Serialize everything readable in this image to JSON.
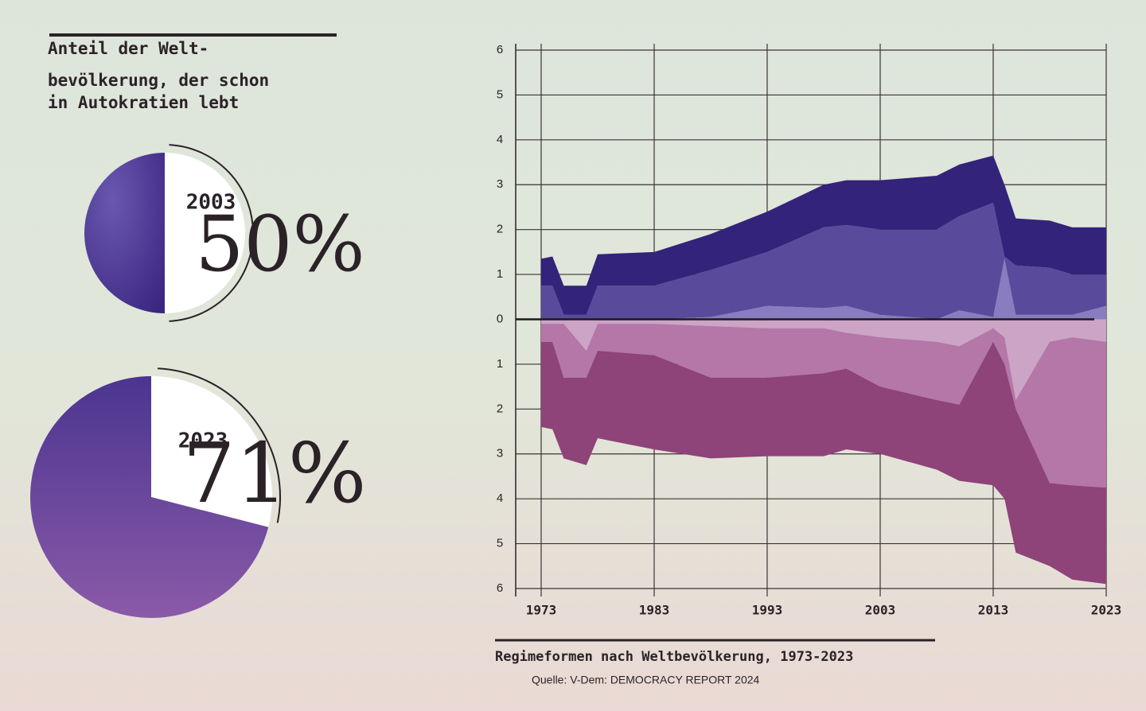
{
  "heading": [
    "Anteil der Welt-",
    "bevölkerung, der schon",
    "in Autokratien lebt"
  ],
  "chart_data": [
    {
      "type": "pie",
      "label": "2003",
      "values": [
        50
      ],
      "value_labels": [
        "50%"
      ],
      "color": "#3b2b86"
    },
    {
      "type": "pie",
      "label": "2023",
      "values": [
        71
      ],
      "value_labels": [
        "71%"
      ],
      "color": "#4d3a8e"
    },
    {
      "type": "area",
      "title": "Regimeformen nach Weltbevölkerung, 1973-2023",
      "source": "Quelle: V-Dem: DEMOCRACY REPORT 2024",
      "x": [
        1973,
        1974,
        1975,
        1977,
        1978,
        1983,
        1988,
        1993,
        1998,
        2000,
        2003,
        2008,
        2010,
        2013,
        2014,
        2015,
        2018,
        2020,
        2023
      ],
      "xlim": [
        1973,
        2023
      ],
      "xticks": [
        1973,
        1983,
        1993,
        2003,
        2013,
        2023
      ],
      "ylim": [
        -6,
        6
      ],
      "yticks": [
        {
          "value": -6,
          "label": "6"
        },
        {
          "value": -5,
          "label": "5"
        },
        {
          "value": -4,
          "label": "4"
        },
        {
          "value": -3,
          "label": "3"
        },
        {
          "value": -2,
          "label": "2"
        },
        {
          "value": -1,
          "label": "1"
        },
        0,
        1,
        2,
        3,
        4,
        5,
        6
      ],
      "grid": true,
      "series": [
        {
          "color": "#8a7cc0",
          "values": [
            0,
            0,
            0,
            0,
            0,
            0,
            0.05,
            0.3,
            0.25,
            0.3,
            0.1,
            0,
            0.2,
            0.05,
            1.35,
            0.1,
            0.1,
            0.1,
            0.3
          ]
        },
        {
          "color": "#5a4a9c",
          "values": [
            0.75,
            0.75,
            0.1,
            0.1,
            0.75,
            0.75,
            1.05,
            1.2,
            1.8,
            1.8,
            1.9,
            2.0,
            2.1,
            2.55,
            0.05,
            1.1,
            1.05,
            0.9,
            0.7
          ]
        },
        {
          "color": "#33237a",
          "values": [
            0.6,
            0.65,
            0.65,
            0.65,
            0.7,
            0.75,
            0.8,
            0.9,
            0.95,
            1.0,
            1.1,
            1.2,
            1.15,
            1.05,
            1.6,
            1.05,
            1.05,
            1.05,
            1.05
          ]
        },
        {
          "color": "#cba4c6",
          "values": [
            -0.1,
            -0.1,
            -0.1,
            -0.7,
            -0.1,
            -0.1,
            -0.15,
            -0.2,
            -0.2,
            -0.3,
            -0.4,
            -0.5,
            -0.6,
            -0.2,
            -0.4,
            -1.8,
            -0.5,
            -0.4,
            -0.5
          ]
        },
        {
          "color": "#b477a8",
          "values": [
            -0.4,
            -0.4,
            -1.2,
            -0.6,
            -0.6,
            -0.7,
            -1.15,
            -1.1,
            -1.0,
            -0.8,
            -1.1,
            -1.3,
            -1.3,
            -0.3,
            -0.6,
            -0.2,
            -3.15,
            -3.3,
            -3.25
          ]
        },
        {
          "color": "#8e4379",
          "values": [
            -1.9,
            -1.95,
            -1.8,
            -1.95,
            -1.95,
            -2.1,
            -1.8,
            -1.75,
            -1.85,
            -1.8,
            -1.5,
            -1.55,
            -1.7,
            -3.2,
            -3.0,
            -3.2,
            -1.85,
            -2.1,
            -2.15
          ]
        }
      ]
    }
  ]
}
